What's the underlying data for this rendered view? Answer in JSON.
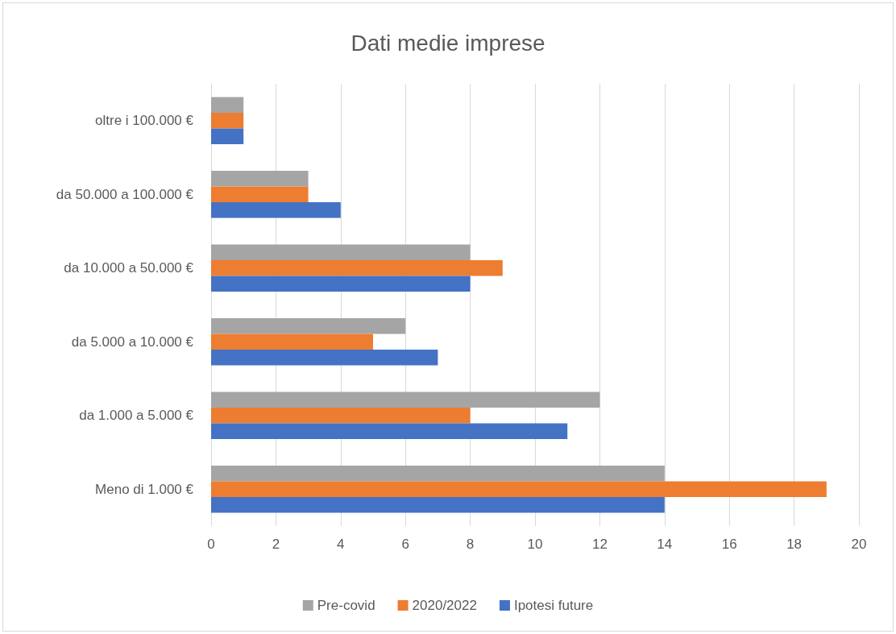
{
  "chart_data": {
    "type": "bar",
    "orientation": "horizontal",
    "title": "Dati medie imprese",
    "categories": [
      "oltre i 100.000 €",
      "da 50.000 a 100.000 €",
      "da 10.000 a 50.000 €",
      "da 5.000 a 10.000 €",
      "da 1.000 a 5.000 €",
      "Meno di 1.000 €"
    ],
    "series": [
      {
        "name": "Pre-covid",
        "color": "#a5a5a5",
        "values": [
          1,
          3,
          8,
          6,
          12,
          14
        ]
      },
      {
        "name": "2020/2022",
        "color": "#ed7d31",
        "values": [
          1,
          3,
          9,
          5,
          8,
          19
        ]
      },
      {
        "name": "Ipotesi future",
        "color": "#4472c4",
        "values": [
          1,
          4,
          8,
          7,
          11,
          14
        ]
      }
    ],
    "xlim": [
      0,
      20
    ],
    "xticks": [
      0,
      2,
      4,
      6,
      8,
      10,
      12,
      14,
      16,
      18,
      20
    ],
    "grid": "x",
    "legend": "bottom"
  }
}
